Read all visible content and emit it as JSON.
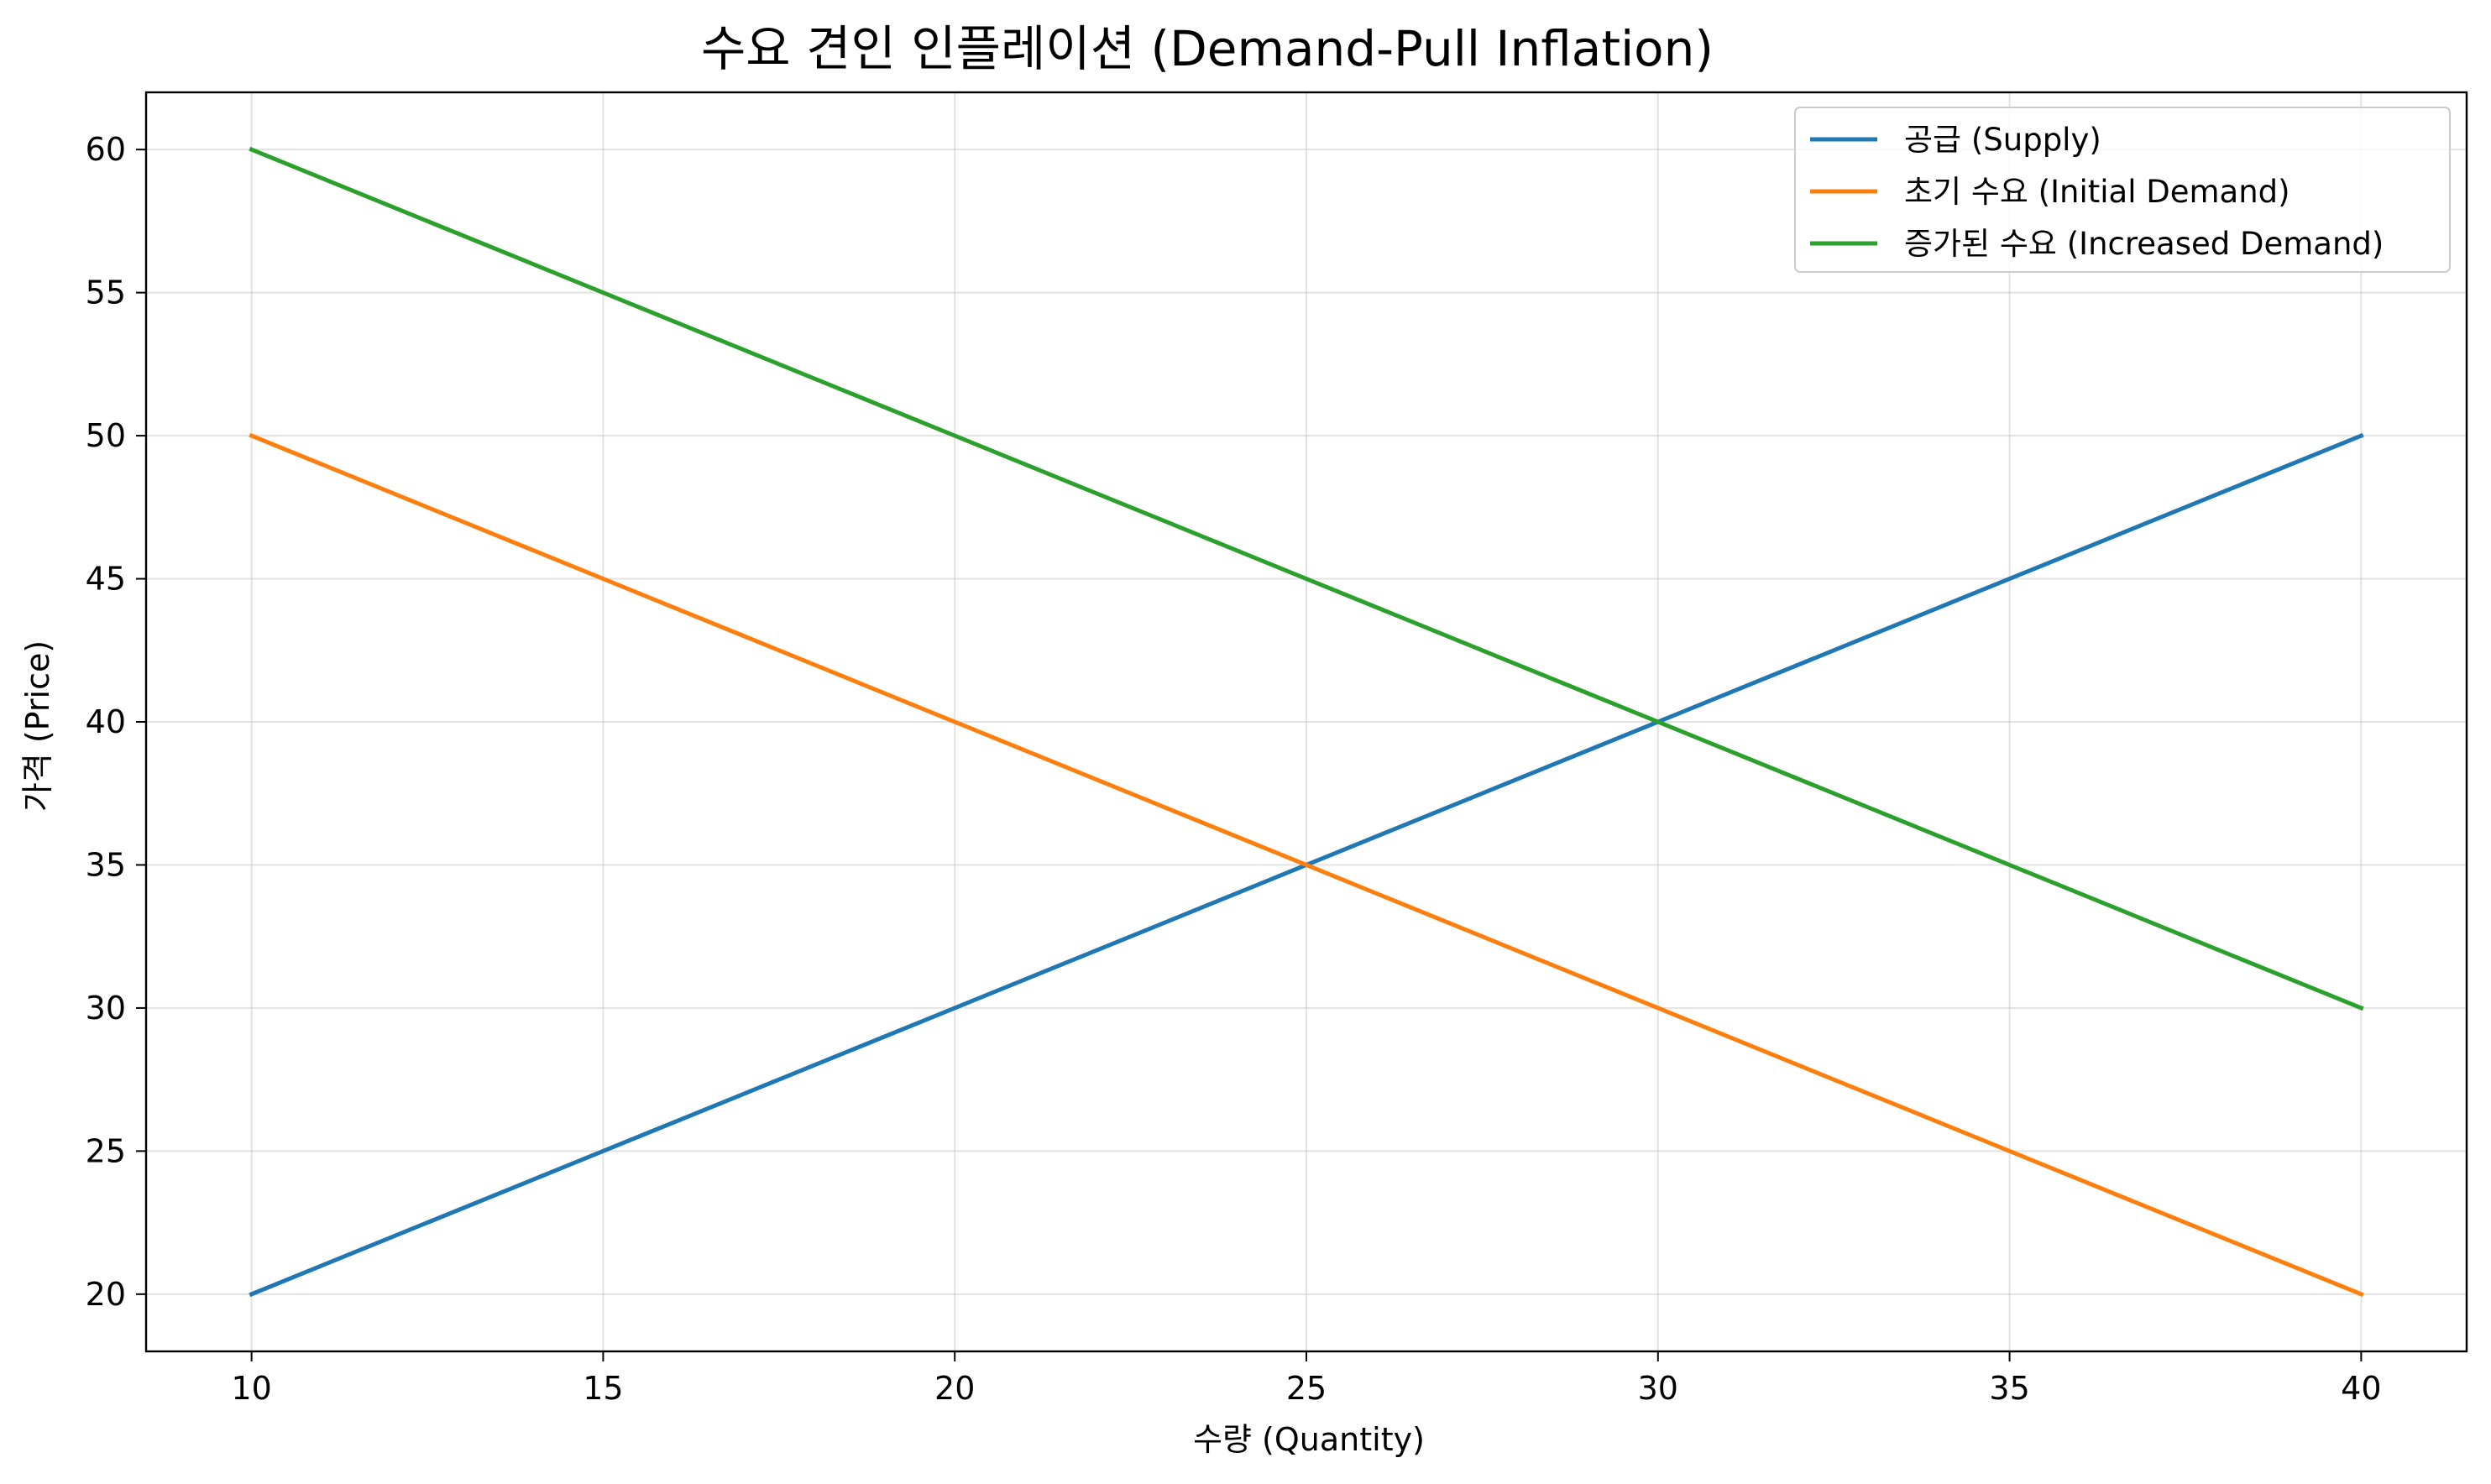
{
  "chart_data": {
    "type": "line",
    "title": "수요 견인 인플레이션 (Demand-Pull Inflation)",
    "xlabel": "수량 (Quantity)",
    "ylabel": "가격 (Price)",
    "xlim": [
      8.5,
      41.5
    ],
    "ylim": [
      18,
      62
    ],
    "xticks": [
      10,
      15,
      20,
      25,
      30,
      35,
      40
    ],
    "yticks": [
      20,
      25,
      30,
      35,
      40,
      45,
      50,
      55,
      60
    ],
    "grid": true,
    "legend_position": "top-right",
    "x": [
      10,
      40
    ],
    "series": [
      {
        "name": "공급 (Supply)",
        "color": "#1f77b4",
        "values": [
          20,
          50
        ]
      },
      {
        "name": "초기 수요 (Initial Demand)",
        "color": "#ff7f0e",
        "values": [
          50,
          20
        ]
      },
      {
        "name": "증가된 수요 (Increased Demand)",
        "color": "#2ca02c",
        "values": [
          60,
          30
        ]
      }
    ]
  }
}
